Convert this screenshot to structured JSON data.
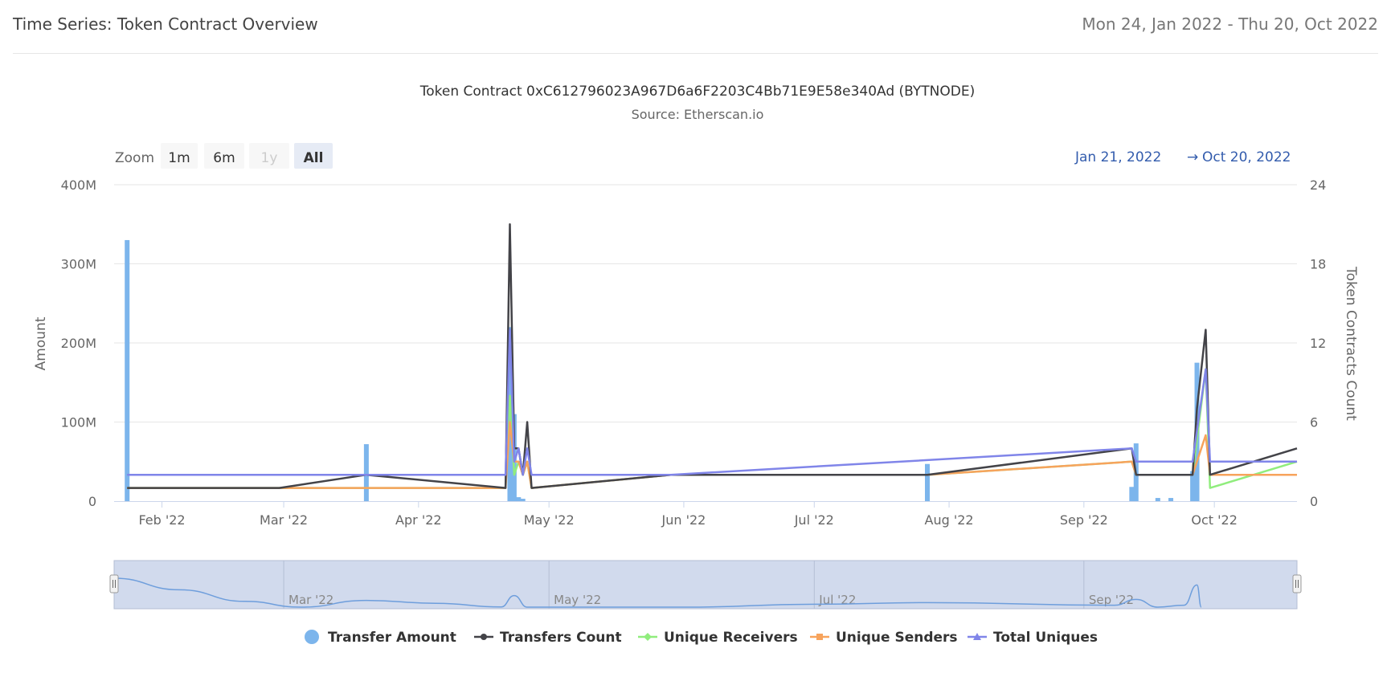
{
  "header": {
    "title": "Time Series: Token Contract Overview",
    "date_range": "Mon 24, Jan 2022 - Thu 20, Oct 2022"
  },
  "range_selector": {
    "zoom_label": "Zoom",
    "buttons": [
      {
        "label": "1m",
        "state": "normal"
      },
      {
        "label": "6m",
        "state": "normal"
      },
      {
        "label": "1y",
        "state": "disabled"
      },
      {
        "label": "All",
        "state": "selected"
      }
    ],
    "from": "Jan 21, 2022",
    "arrow": "→",
    "to": "Oct 20, 2022"
  },
  "colors": {
    "transfer_amount": "#7cb5ec",
    "transfers_count": "#434348",
    "unique_receivers": "#90ed7d",
    "unique_senders": "#f7a35c",
    "total_uniques": "#8085e9",
    "navigator_fill": "#ccd6eb",
    "navigator_line": "#6e9edc",
    "range_text": "#335cad"
  },
  "chart_data": {
    "type": "line",
    "title": "Token Contract 0xC612796023A967D6a6F2203C4Bb71E9E58e340Ad (BYTNODE)",
    "subtitle": "Source: Etherscan.io",
    "xlim": [
      "2022-01-21",
      "2022-10-20"
    ],
    "x_ticks": [
      {
        "date": "2022-02-01",
        "label": "Feb '22"
      },
      {
        "date": "2022-03-01",
        "label": "Mar '22"
      },
      {
        "date": "2022-04-01",
        "label": "Apr '22"
      },
      {
        "date": "2022-05-01",
        "label": "May '22"
      },
      {
        "date": "2022-06-01",
        "label": "Jun '22"
      },
      {
        "date": "2022-07-01",
        "label": "Jul '22"
      },
      {
        "date": "2022-08-01",
        "label": "Aug '22"
      },
      {
        "date": "2022-09-01",
        "label": "Sep '22"
      },
      {
        "date": "2022-10-01",
        "label": "Oct '22"
      }
    ],
    "y_left": {
      "label": "Amount",
      "min": 0,
      "max": 400000000,
      "ticks": [
        0,
        100000000,
        200000000,
        300000000,
        400000000
      ],
      "tick_labels": [
        "0",
        "100M",
        "200M",
        "300M",
        "400M"
      ]
    },
    "y_right": {
      "label": "Token Contracts Count",
      "min": 0,
      "max": 24,
      "ticks": [
        0,
        6,
        12,
        18,
        24
      ],
      "tick_labels": [
        "0",
        "6",
        "12",
        "18",
        "24"
      ]
    },
    "series": [
      {
        "name": "Transfer Amount",
        "type": "column",
        "axis": "left",
        "color_key": "transfer_amount",
        "points": [
          [
            "2022-01-24",
            330000000
          ],
          [
            "2022-03-20",
            72000000
          ],
          [
            "2022-04-22",
            220000000
          ],
          [
            "2022-04-23",
            110000000
          ],
          [
            "2022-04-24",
            5000000
          ],
          [
            "2022-04-25",
            3000000
          ],
          [
            "2022-07-27",
            47000000
          ],
          [
            "2022-09-12",
            18000000
          ],
          [
            "2022-09-13",
            73000000
          ],
          [
            "2022-09-18",
            4000000
          ],
          [
            "2022-09-21",
            4000000
          ],
          [
            "2022-09-26",
            38000000
          ],
          [
            "2022-09-27",
            175000000
          ]
        ]
      },
      {
        "name": "Transfers Count",
        "type": "line",
        "axis": "right",
        "color_key": "transfers_count",
        "points": [
          [
            "2022-01-24",
            1
          ],
          [
            "2022-02-28",
            1
          ],
          [
            "2022-03-20",
            2
          ],
          [
            "2022-04-21",
            1
          ],
          [
            "2022-04-22",
            21
          ],
          [
            "2022-04-23",
            4
          ],
          [
            "2022-04-24",
            4
          ],
          [
            "2022-04-25",
            2
          ],
          [
            "2022-04-26",
            6
          ],
          [
            "2022-04-27",
            1
          ],
          [
            "2022-05-29",
            2
          ],
          [
            "2022-07-27",
            2
          ],
          [
            "2022-09-12",
            4
          ],
          [
            "2022-09-13",
            2
          ],
          [
            "2022-09-26",
            2
          ],
          [
            "2022-09-27",
            7
          ],
          [
            "2022-09-29",
            13
          ],
          [
            "2022-09-30",
            2
          ],
          [
            "2022-10-20",
            4
          ]
        ]
      },
      {
        "name": "Unique Receivers",
        "type": "line",
        "axis": "right",
        "color_key": "unique_receivers",
        "points": [
          [
            "2022-01-24",
            1
          ],
          [
            "2022-04-21",
            1
          ],
          [
            "2022-04-22",
            8
          ],
          [
            "2022-04-23",
            2
          ],
          [
            "2022-04-24",
            3
          ],
          [
            "2022-04-25",
            2
          ],
          [
            "2022-04-26",
            3
          ],
          [
            "2022-04-27",
            1
          ],
          [
            "2022-05-29",
            2
          ],
          [
            "2022-07-27",
            2
          ],
          [
            "2022-09-12",
            3
          ],
          [
            "2022-09-13",
            2
          ],
          [
            "2022-09-26",
            2
          ],
          [
            "2022-09-29",
            10
          ],
          [
            "2022-09-30",
            1
          ],
          [
            "2022-10-20",
            3
          ]
        ]
      },
      {
        "name": "Unique Senders",
        "type": "line",
        "axis": "right",
        "color_key": "unique_senders",
        "points": [
          [
            "2022-01-24",
            1
          ],
          [
            "2022-04-21",
            1
          ],
          [
            "2022-04-22",
            6
          ],
          [
            "2022-04-23",
            3
          ],
          [
            "2022-04-24",
            3
          ],
          [
            "2022-04-25",
            2
          ],
          [
            "2022-04-26",
            3
          ],
          [
            "2022-04-27",
            1
          ],
          [
            "2022-05-29",
            2
          ],
          [
            "2022-07-27",
            2
          ],
          [
            "2022-09-12",
            3
          ],
          [
            "2022-09-13",
            2
          ],
          [
            "2022-09-26",
            2
          ],
          [
            "2022-09-29",
            5
          ],
          [
            "2022-09-30",
            2
          ],
          [
            "2022-10-20",
            2
          ]
        ]
      },
      {
        "name": "Total Uniques",
        "type": "line",
        "axis": "right",
        "color_key": "total_uniques",
        "points": [
          [
            "2022-01-24",
            2
          ],
          [
            "2022-04-21",
            2
          ],
          [
            "2022-04-22",
            13
          ],
          [
            "2022-04-23",
            3
          ],
          [
            "2022-04-24",
            4
          ],
          [
            "2022-04-25",
            2
          ],
          [
            "2022-04-26",
            4
          ],
          [
            "2022-04-27",
            2
          ],
          [
            "2022-05-29",
            2
          ],
          [
            "2022-09-12",
            4
          ],
          [
            "2022-09-13",
            3
          ],
          [
            "2022-09-26",
            3
          ],
          [
            "2022-09-29",
            10
          ],
          [
            "2022-09-30",
            3
          ],
          [
            "2022-10-20",
            3
          ]
        ]
      }
    ],
    "navigator": {
      "x_labels": [
        "Mar '22",
        "May '22",
        "Jul '22",
        "Sep '22"
      ],
      "label_dates": [
        "2022-03-01",
        "2022-05-01",
        "2022-07-01",
        "2022-09-01"
      ]
    },
    "legend": {
      "position": "bottom-center"
    },
    "grid": true
  }
}
